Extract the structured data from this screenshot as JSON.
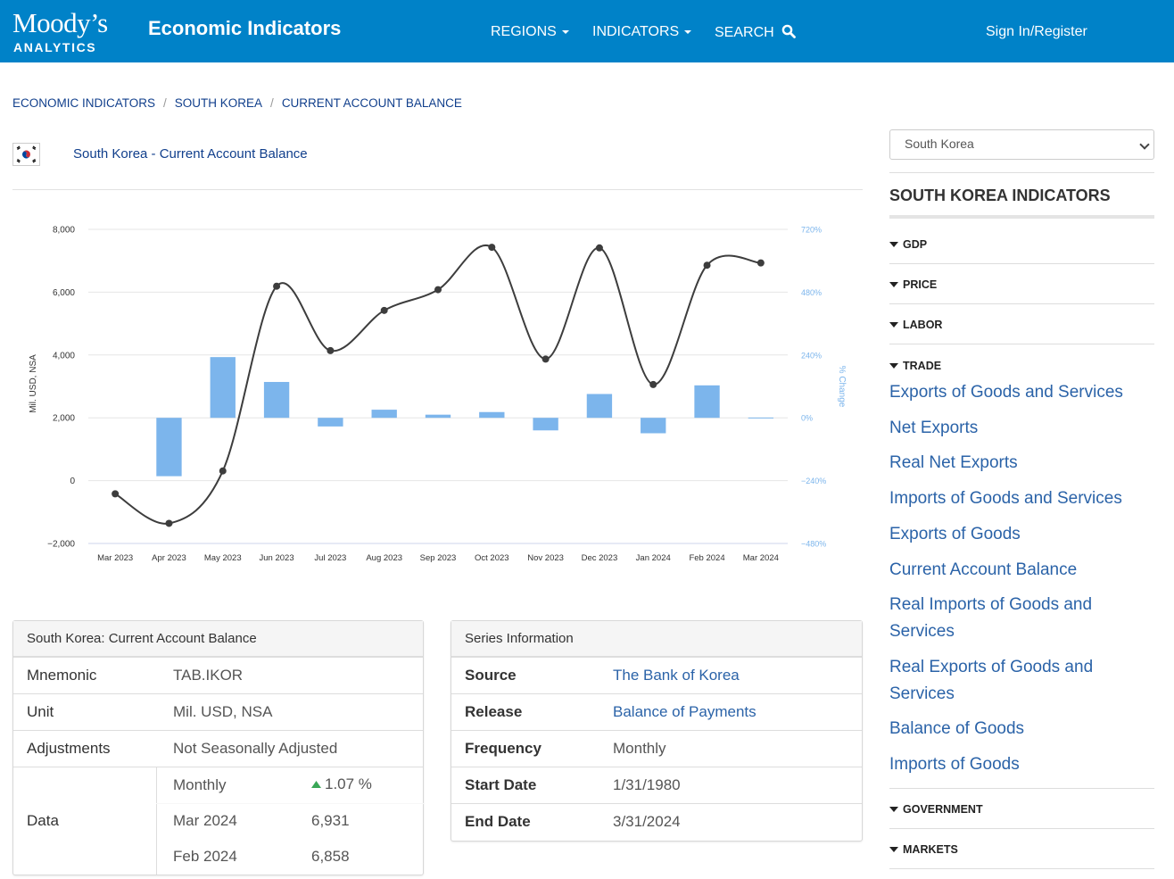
{
  "header": {
    "logo_main": "Moody’s",
    "logo_sub": "ANALYTICS",
    "site_title": "Economic Indicators",
    "nav": {
      "regions": "REGIONS",
      "indicators": "INDICATORS",
      "search": "SEARCH"
    },
    "signin": "Sign In/Register"
  },
  "breadcrumb": [
    "ECONOMIC INDICATORS",
    "SOUTH KOREA",
    "CURRENT ACCOUNT BALANCE"
  ],
  "page_title": "South Korea - Current Account Balance",
  "chart_data": {
    "type": "bar+line",
    "categories": [
      "Mar 2023",
      "Apr 2023",
      "May 2023",
      "Jun 2023",
      "Jul 2023",
      "Aug 2023",
      "Sep 2023",
      "Oct 2023",
      "Nov 2023",
      "Dec 2023",
      "Jan 2024",
      "Feb 2024",
      "Mar 2024"
    ],
    "series": [
      {
        "name": "Current Account Balance",
        "kind": "line",
        "axis": "left",
        "values": [
          -420,
          -1360,
          310,
          6190,
          4140,
          5420,
          6080,
          7430,
          3870,
          7410,
          3060,
          6858,
          6931
        ]
      },
      {
        "name": "% Change",
        "kind": "bar",
        "axis": "right",
        "values": [
          null,
          -223,
          232,
          137,
          -33,
          31,
          12,
          22,
          -48,
          91,
          -59,
          124,
          1.07
        ]
      }
    ],
    "ylabel": "Mil. USD, NSA",
    "y2label": "% Change",
    "ylim": [
      -2000,
      8000
    ],
    "y2lim": [
      -480,
      720
    ],
    "yticks": [
      "8,000",
      "6,000",
      "4,000",
      "2,000",
      "0",
      "−2,000"
    ],
    "y2ticks": [
      "720%",
      "480%",
      "240%",
      "0%",
      "−240%",
      "−480%"
    ],
    "colors": {
      "line": "#3d3d3d",
      "bar": "#7cb5ec",
      "y2": "#7cb5ec"
    }
  },
  "indicator_table": {
    "title": "South Korea: Current Account Balance",
    "rows": [
      {
        "label": "Mnemonic",
        "value": "TAB.IKOR"
      },
      {
        "label": "Unit",
        "value": "Mil. USD, NSA"
      },
      {
        "label": "Adjustments",
        "value": "Not Seasonally Adjusted"
      }
    ],
    "data_label": "Data",
    "freq": "Monthly",
    "change": "1.07 %",
    "points": [
      {
        "period": "Mar 2024",
        "value": "6,931"
      },
      {
        "period": "Feb 2024",
        "value": "6,858"
      }
    ]
  },
  "series_info": {
    "title": "Series Information",
    "rows": [
      {
        "label": "Source",
        "value": "The Bank of Korea"
      },
      {
        "label": "Release",
        "value": "Balance of Payments"
      },
      {
        "label": "Frequency",
        "value": "Monthly"
      },
      {
        "label": "Start Date",
        "value": "1/31/1980"
      },
      {
        "label": "End Date",
        "value": "3/31/2024"
      }
    ]
  },
  "sidebar": {
    "select_value": "South Korea",
    "heading": "SOUTH KOREA INDICATORS",
    "categories": [
      "GDP",
      "PRICE",
      "LABOR",
      "TRADE",
      "GOVERNMENT",
      "MARKETS"
    ],
    "trade_links": [
      "Exports of Goods and Services",
      "Net Exports",
      "Real Net Exports",
      "Imports of Goods and Services",
      "Exports of Goods",
      "Current Account Balance",
      "Real Imports of Goods and Services",
      "Real Exports of Goods and Services",
      "Balance of Goods",
      "Imports of Goods"
    ]
  }
}
